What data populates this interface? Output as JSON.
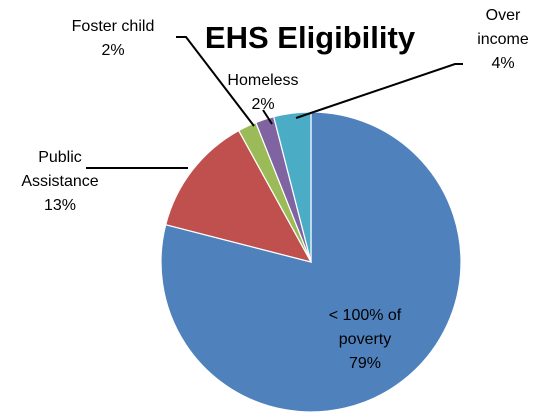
{
  "chart_data": {
    "type": "pie",
    "title": "EHS Eligibility",
    "slices": [
      {
        "label": "< 100% of poverty",
        "value": 79,
        "percent_label": "79%",
        "color": "#4F81BD"
      },
      {
        "label": "Public Assistance",
        "value": 13,
        "percent_label": "13%",
        "color": "#C0504D"
      },
      {
        "label": "Foster child",
        "value": 2,
        "percent_label": "2%",
        "color": "#9BBB59"
      },
      {
        "label": "Homeless",
        "value": 2,
        "percent_label": "2%",
        "color": "#8064A2"
      },
      {
        "label": "Over income",
        "value": 4,
        "percent_label": "4%",
        "color": "#4BACC6"
      }
    ],
    "legend": "none",
    "data_labels": "outside with leader lines"
  }
}
